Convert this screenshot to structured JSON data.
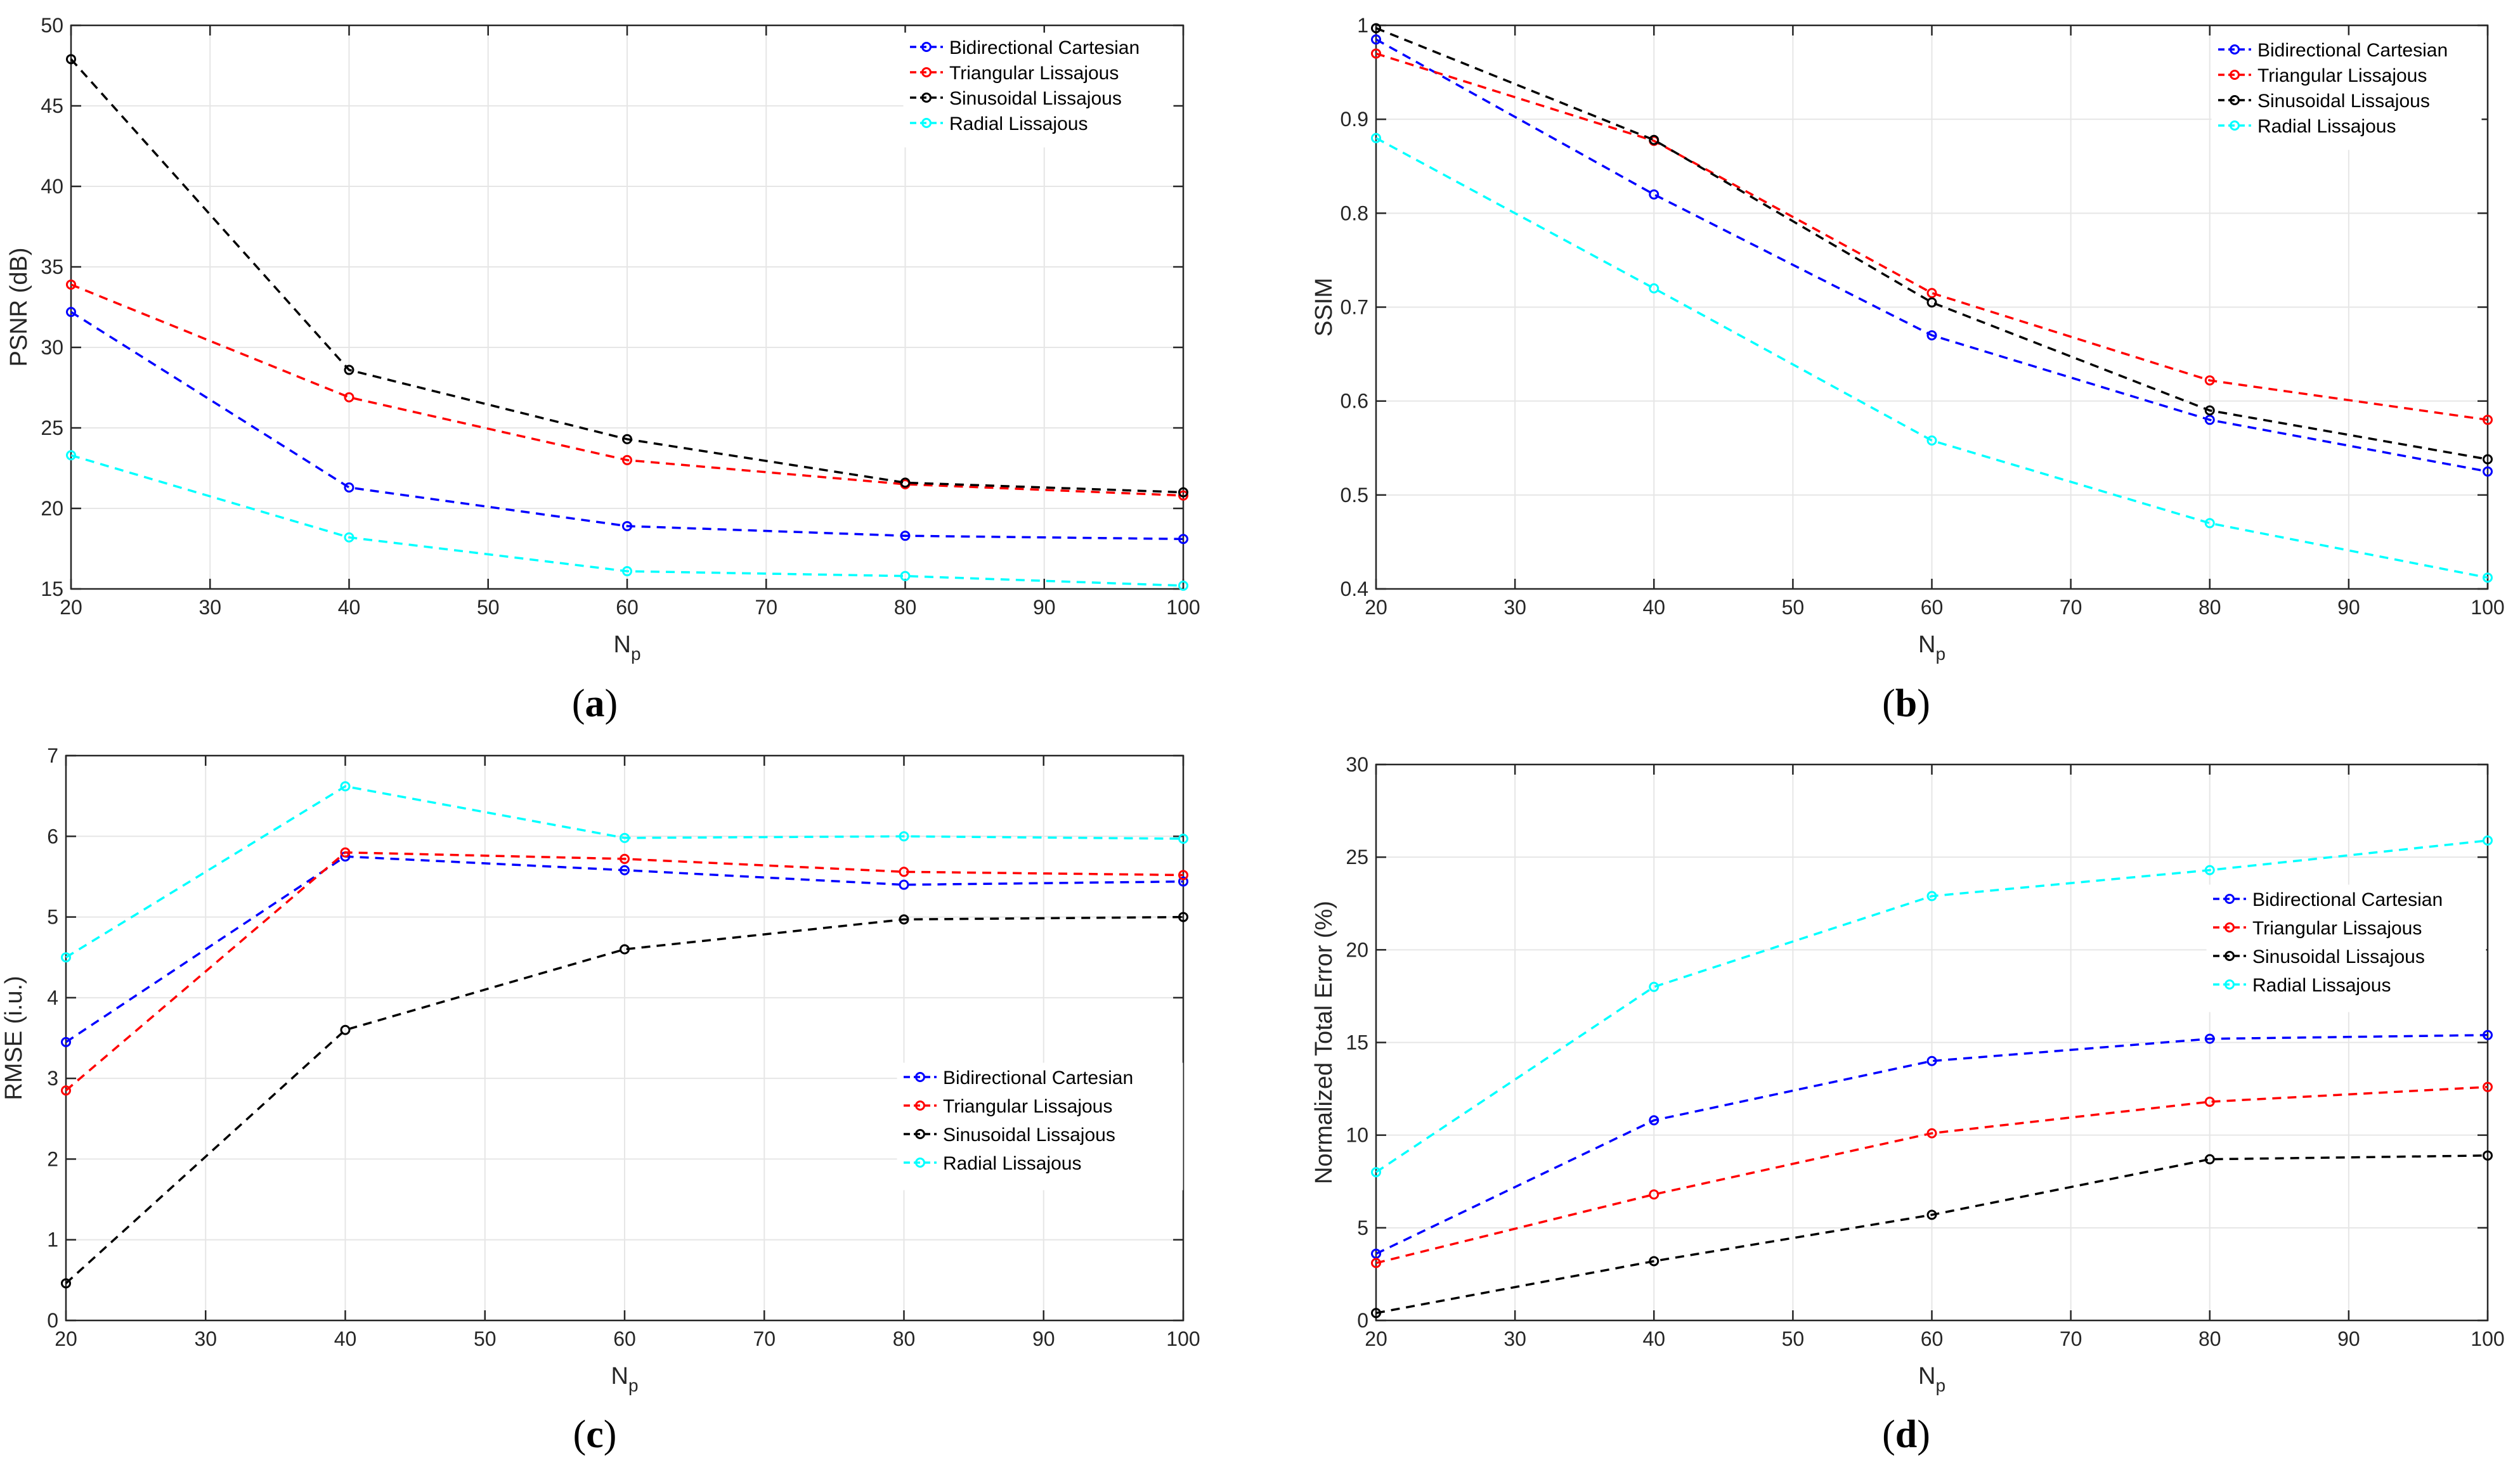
{
  "chart_data": [
    {
      "panel": "a",
      "caption": {
        "open": "(",
        "letter": "a",
        "close": ")"
      },
      "type": "line",
      "xlabel": "N",
      "xlabel_sub": "p",
      "ylabel": "PSNR (dB)",
      "xlim": [
        20,
        100
      ],
      "ylim": [
        15,
        50
      ],
      "xticks": [
        20,
        30,
        40,
        50,
        60,
        70,
        80,
        90,
        100
      ],
      "yticks": [
        15,
        20,
        25,
        30,
        35,
        40,
        45,
        50
      ],
      "x": [
        20,
        40,
        60,
        80,
        100
      ],
      "legend_position": "top-right",
      "series": [
        {
          "name": "Bidirectional Cartesian",
          "color": "#0000ff",
          "values": [
            32.2,
            21.3,
            18.9,
            18.3,
            18.1
          ]
        },
        {
          "name": "Triangular Lissajous",
          "color": "#ff0000",
          "values": [
            33.9,
            26.9,
            23.0,
            21.5,
            20.8
          ]
        },
        {
          "name": "Sinusoidal Lissajous",
          "color": "#000000",
          "values": [
            47.9,
            28.6,
            24.3,
            21.6,
            21.0
          ]
        },
        {
          "name": "Radial Lissajous",
          "color": "#00ffff",
          "values": [
            23.3,
            18.2,
            16.1,
            15.8,
            15.2
          ]
        }
      ]
    },
    {
      "panel": "b",
      "caption": {
        "open": "(",
        "letter": "b",
        "close": ")"
      },
      "type": "line",
      "xlabel": "N",
      "xlabel_sub": "p",
      "ylabel": "SSIM",
      "xlim": [
        20,
        100
      ],
      "ylim": [
        0.4,
        1
      ],
      "xticks": [
        20,
        30,
        40,
        50,
        60,
        70,
        80,
        90,
        100
      ],
      "yticks": [
        0.4,
        0.5,
        0.6,
        0.7,
        0.8,
        0.9,
        1
      ],
      "x": [
        20,
        40,
        60,
        80,
        100
      ],
      "legend_position": "top-right",
      "series": [
        {
          "name": "Bidirectional Cartesian",
          "color": "#0000ff",
          "values": [
            0.985,
            0.82,
            0.67,
            0.58,
            0.525
          ]
        },
        {
          "name": "Triangular Lissajous",
          "color": "#ff0000",
          "values": [
            0.97,
            0.877,
            0.715,
            0.622,
            0.58
          ]
        },
        {
          "name": "Sinusoidal Lissajous",
          "color": "#000000",
          "values": [
            0.997,
            0.878,
            0.705,
            0.59,
            0.538
          ]
        },
        {
          "name": "Radial Lissajous",
          "color": "#00ffff",
          "values": [
            0.88,
            0.72,
            0.558,
            0.47,
            0.412
          ]
        }
      ]
    },
    {
      "panel": "c",
      "caption": {
        "open": "(",
        "letter": "c",
        "close": ")"
      },
      "type": "line",
      "xlabel": "N",
      "xlabel_sub": "p",
      "ylabel": "RMSE (i.u.)",
      "xlim": [
        20,
        100
      ],
      "ylim": [
        0,
        7
      ],
      "xticks": [
        20,
        30,
        40,
        50,
        60,
        70,
        80,
        90,
        100
      ],
      "yticks": [
        0,
        1,
        2,
        3,
        4,
        5,
        6,
        7
      ],
      "x": [
        20,
        40,
        60,
        80,
        100
      ],
      "legend_position": "right",
      "series": [
        {
          "name": "Bidirectional Cartesian",
          "color": "#0000ff",
          "values": [
            3.45,
            5.75,
            5.58,
            5.4,
            5.44
          ]
        },
        {
          "name": "Triangular Lissajous",
          "color": "#ff0000",
          "values": [
            2.85,
            5.8,
            5.72,
            5.56,
            5.52
          ]
        },
        {
          "name": "Sinusoidal Lissajous",
          "color": "#000000",
          "values": [
            0.46,
            3.6,
            4.6,
            4.97,
            5.0
          ]
        },
        {
          "name": "Radial Lissajous",
          "color": "#00ffff",
          "values": [
            4.5,
            6.62,
            5.98,
            6.0,
            5.97
          ]
        }
      ]
    },
    {
      "panel": "d",
      "caption": {
        "open": "(",
        "letter": "d",
        "close": ")"
      },
      "type": "line",
      "xlabel": "N",
      "xlabel_sub": "p",
      "ylabel": "Normalized Total Error (%)",
      "xlim": [
        20,
        100
      ],
      "ylim": [
        0,
        30
      ],
      "xticks": [
        20,
        30,
        40,
        50,
        60,
        70,
        80,
        90,
        100
      ],
      "yticks": [
        0,
        5,
        10,
        15,
        20,
        25,
        30
      ],
      "x": [
        20,
        40,
        60,
        80,
        100
      ],
      "legend_position": "right",
      "series": [
        {
          "name": "Bidirectional Cartesian",
          "color": "#0000ff",
          "values": [
            3.6,
            10.8,
            14.0,
            15.2,
            15.4
          ]
        },
        {
          "name": "Triangular Lissajous",
          "color": "#ff0000",
          "values": [
            3.1,
            6.8,
            10.1,
            11.8,
            12.6
          ]
        },
        {
          "name": "Sinusoidal Lissajous",
          "color": "#000000",
          "values": [
            0.4,
            3.2,
            5.7,
            8.7,
            8.9
          ]
        },
        {
          "name": "Radial Lissajous",
          "color": "#00ffff",
          "values": [
            8.0,
            18.0,
            22.9,
            24.3,
            25.9
          ]
        }
      ]
    }
  ]
}
